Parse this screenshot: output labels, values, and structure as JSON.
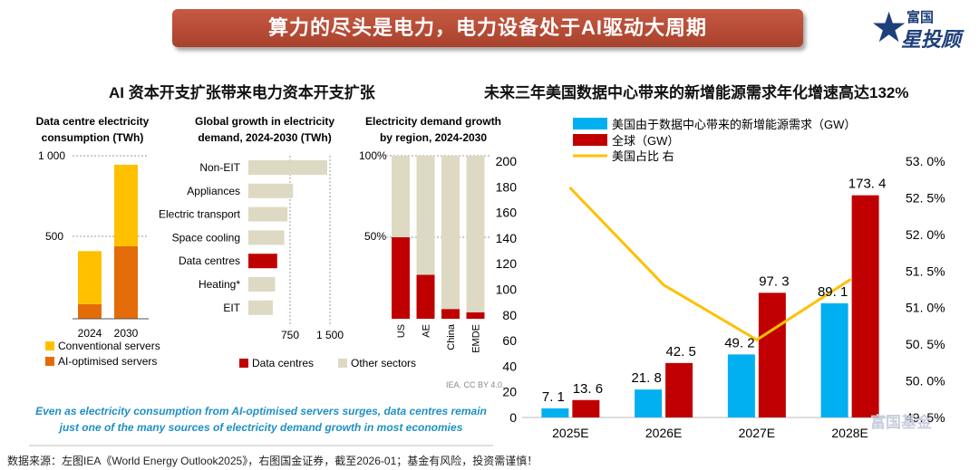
{
  "header": {
    "title": "算力的尽头是电力，电力设备处于AI驱动大周期"
  },
  "logo": {
    "line1": "富国",
    "line2": "星投顾",
    "star_glyph": "★"
  },
  "left": {
    "subtitle": "AI 资本开支扩张带来电力资本开支扩张",
    "source_note": "IEA. CC BY 4.0.",
    "caption_line1": "Even as electricity consumption from AI-optimised servers surges, data centres remain",
    "caption_line2": "just one of the many sources of electricity demand growth in most economies"
  },
  "right": {
    "subtitle": "未来三年美国数据中心带来的新增能源需求年化增速高达132%"
  },
  "footer": {
    "text": "数据来源：左图IEA《World Energy Outlook2025》，右图国金证券，截至2026-01；基金有风险，投资需谨慎！"
  },
  "watermark": {
    "text": "富国基金"
  },
  "colors": {
    "orange": "#E36C09",
    "yellow": "#FFC000",
    "red": "#C00000",
    "beige": "#DDD9C3",
    "cyan": "#00B0F0",
    "darkred": "#C00000",
    "gold": "#FFC000"
  },
  "chart_data": [
    {
      "type": "bar",
      "stacked": true,
      "title_line1": "Data centre electricity",
      "title_line2": "consumption (TWh)",
      "categories": [
        "2024",
        "2030"
      ],
      "series": [
        {
          "name": "AI-optimised servers",
          "values": [
            90,
            445
          ]
        },
        {
          "name": "Conventional servers",
          "values": [
            325,
            500
          ]
        }
      ],
      "ylim": [
        0,
        1000
      ],
      "yticks": [
        "1 000",
        "500"
      ]
    },
    {
      "type": "bar",
      "orientation": "horizontal",
      "title_line1": "Global growth in electricity",
      "title_line2": "demand, 2024-2030 (TWh)",
      "categories": [
        "Non-EIT",
        "Appliances",
        "Electric transport",
        "Space cooling",
        "Data centres",
        "Heating*",
        "EIT"
      ],
      "values": [
        1450,
        820,
        720,
        660,
        530,
        490,
        450
      ],
      "highlight": "Data centres",
      "xlim": [
        0,
        1500
      ],
      "xticks": [
        "750",
        "1 500"
      ]
    },
    {
      "type": "bar",
      "stacked": true,
      "title_line1": "Electricity demand growth",
      "title_line2": "by region, 2024-2030",
      "categories": [
        "US",
        "AE",
        "China",
        "EMDE"
      ],
      "series": [
        {
          "name": "Data centres",
          "values": [
            50,
            27,
            6,
            4
          ]
        },
        {
          "name": "Other sectors",
          "values": [
            50,
            73,
            94,
            96
          ]
        }
      ],
      "yticks": [
        "100%",
        "50%"
      ],
      "legend": [
        "Data centres",
        "Other sectors"
      ]
    },
    {
      "type": "bar",
      "combo": "bar+line",
      "categories": [
        "2025E",
        "2026E",
        "2027E",
        "2028E"
      ],
      "series": [
        {
          "name": "美国由于数据中心带来的新增能源需求（GW）",
          "values": [
            7.1,
            21.8,
            49.2,
            89.1
          ],
          "labels": [
            "7. 1",
            "21. 8",
            "49. 2",
            "89. 1"
          ]
        },
        {
          "name": "全球（GW）",
          "values": [
            13.6,
            42.5,
            97.3,
            173.4
          ],
          "labels": [
            "13. 6",
            "42. 5",
            "97. 3",
            "173. 4"
          ]
        },
        {
          "name": "美国占比 右",
          "axis": "right",
          "values": [
            52.63,
            51.31,
            50.56,
            51.38
          ]
        }
      ],
      "ylim": [
        0,
        200
      ],
      "yticks": [
        "0",
        "20",
        "40",
        "60",
        "80",
        "100",
        "120",
        "140",
        "160",
        "180",
        "200"
      ],
      "y2lim": [
        49.5,
        53.0
      ],
      "y2ticks": [
        "49. 5%",
        "50. 0%",
        "50. 5%",
        "51. 0%",
        "51. 5%",
        "52. 0%",
        "52. 5%",
        "53. 0%"
      ]
    }
  ]
}
